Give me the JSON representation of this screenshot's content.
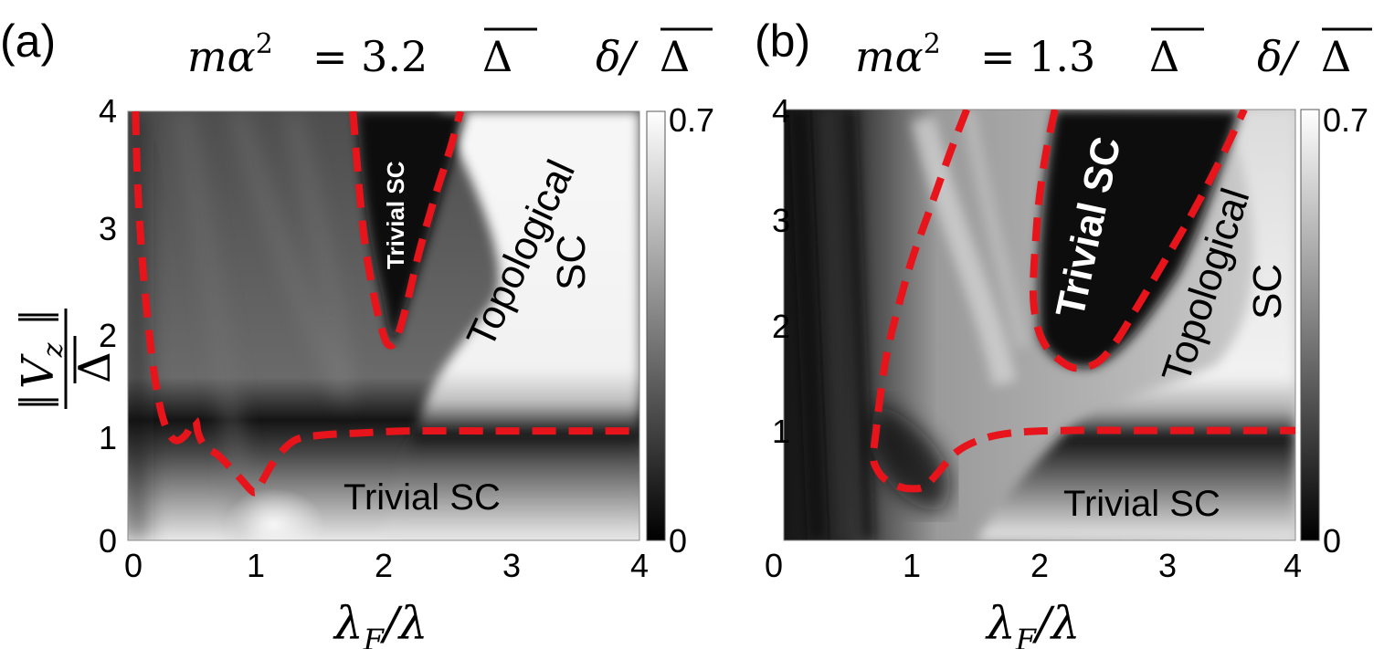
{
  "chart_data": [
    {
      "type": "heatmap",
      "panel_label": "(a)",
      "title": "mα² = 3.2Δ̄",
      "title_parts": {
        "lhs": "mα",
        "exp": "2",
        "rhs": "= 3.2",
        "delta": "Δ"
      },
      "colorbar_label": "δ/Δ̄",
      "colorbar_parts": {
        "num": "δ/",
        "den": "Δ"
      },
      "colorbar_ticks": [
        "0.7",
        "0"
      ],
      "colorbar_range": [
        0,
        0.7
      ],
      "xlabel": "λ_F/λ",
      "xlabel_parts": {
        "main": "λ",
        "sub": "F",
        "rest": "/λ"
      },
      "ylabel": "|V_z|/Δ̄",
      "ylabel_parts": {
        "num": "V",
        "sub": "z",
        "den": "Δ"
      },
      "xlim": [
        0,
        4
      ],
      "ylim": [
        0,
        4
      ],
      "xticks": [
        "0",
        "1",
        "2",
        "3",
        "4"
      ],
      "yticks": [
        "0",
        "1",
        "2",
        "3",
        "4"
      ],
      "region_labels": {
        "trivial_top": "Trivial SC",
        "topological_1": "Topological",
        "topological_2": "SC",
        "trivial_bottom": "Trivial SC"
      },
      "boundaries": [
        {
          "name": "lower-phase-boundary",
          "x": [
            0.06,
            0.07,
            0.09,
            0.12,
            0.16,
            0.2,
            0.26,
            0.32,
            0.38,
            0.45,
            0.5,
            0.53,
            0.55,
            0.6,
            0.7,
            0.8,
            0.9,
            0.96,
            1.0,
            1.05,
            1.15,
            1.3,
            1.5,
            1.8,
            2.2,
            2.8,
            3.4,
            4.0
          ],
          "y": [
            4.0,
            3.5,
            3.0,
            2.5,
            2.0,
            1.6,
            1.2,
            1.0,
            0.93,
            0.98,
            1.08,
            1.12,
            1.0,
            0.88,
            0.8,
            0.68,
            0.55,
            0.47,
            0.45,
            0.55,
            0.75,
            0.93,
            0.98,
            1.0,
            1.02,
            1.02,
            1.02,
            1.02
          ]
        },
        {
          "name": "trivial-pocket-boundary",
          "x": [
            1.76,
            1.8,
            1.85,
            1.92,
            1.99,
            2.04,
            2.1,
            2.18,
            2.28,
            2.4,
            2.52,
            2.6
          ],
          "y": [
            4.0,
            3.4,
            2.8,
            2.3,
            1.95,
            1.82,
            1.88,
            2.2,
            2.7,
            3.2,
            3.65,
            4.0
          ]
        }
      ]
    },
    {
      "type": "heatmap",
      "panel_label": "(b)",
      "title": "mα² = 1.3Δ̄",
      "title_parts": {
        "lhs": "mα",
        "exp": "2",
        "rhs": "= 1.3",
        "delta": "Δ"
      },
      "colorbar_label": "δ/Δ̄",
      "colorbar_parts": {
        "num": "δ/",
        "den": "Δ"
      },
      "colorbar_ticks": [
        "0.7",
        "0"
      ],
      "colorbar_range": [
        0,
        0.7
      ],
      "xlabel": "λ_F/λ",
      "xlabel_parts": {
        "main": "λ",
        "sub": "F",
        "rest": "/λ"
      },
      "xlim": [
        0,
        4
      ],
      "ylim": [
        0,
        4
      ],
      "xticks": [
        "0",
        "1",
        "2",
        "3",
        "4"
      ],
      "yticks": [
        "1",
        "2",
        "3",
        "4"
      ],
      "region_labels": {
        "trivial_top": "Trivial SC",
        "topological_1": "Topological",
        "topological_2": "SC",
        "trivial_bottom": "Trivial SC"
      },
      "boundaries": [
        {
          "name": "lower-phase-boundary",
          "x": [
            1.43,
            1.3,
            1.15,
            1.0,
            0.88,
            0.8,
            0.75,
            0.72,
            0.7,
            0.72,
            0.78,
            0.9,
            1.0,
            1.1,
            1.2,
            1.35,
            1.55,
            1.8,
            2.2,
            2.8,
            3.4,
            4.0
          ],
          "y": [
            4.0,
            3.6,
            3.1,
            2.6,
            2.1,
            1.7,
            1.3,
            1.0,
            0.78,
            0.68,
            0.58,
            0.5,
            0.48,
            0.5,
            0.62,
            0.82,
            0.94,
            1.0,
            1.02,
            1.02,
            1.02,
            1.02
          ]
        },
        {
          "name": "trivial-pocket-boundary",
          "x": [
            2.12,
            2.05,
            2.0,
            1.97,
            1.95,
            1.98,
            2.05,
            2.15,
            2.28,
            2.45,
            2.6,
            2.78,
            2.98,
            3.2,
            3.42,
            3.6
          ],
          "y": [
            4.0,
            3.6,
            3.2,
            2.8,
            2.3,
            2.0,
            1.8,
            1.68,
            1.6,
            1.65,
            1.85,
            2.2,
            2.6,
            3.05,
            3.55,
            4.0
          ]
        }
      ]
    }
  ]
}
